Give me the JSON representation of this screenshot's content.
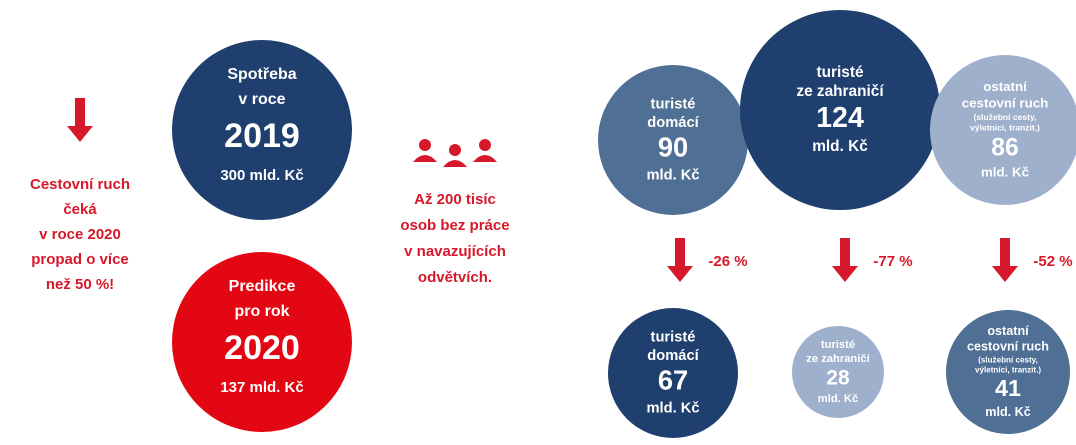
{
  "headline": {
    "lines": [
      "Cestovní  ruch",
      "čeká",
      "v roce 2020",
      "propad o více",
      "než 50 %!"
    ]
  },
  "consumption_2019": {
    "lines": [
      "Spotřeba",
      "v roce"
    ],
    "year": "2019",
    "amount": "300 mld. Kč"
  },
  "prediction_2020": {
    "lines": [
      "Predikce",
      "pro rok"
    ],
    "year": "2020",
    "amount": "137 mld. Kč"
  },
  "unemployment": {
    "lines": [
      "Až 200 tisíc",
      "osob bez práce",
      "v navazujících",
      "odvětvích."
    ]
  },
  "segments_2019": [
    {
      "lines": [
        "turisté",
        "domácí"
      ],
      "value": "90",
      "unit": "mld. Kč"
    },
    {
      "lines": [
        "turisté",
        "ze zahraničí"
      ],
      "value": "124",
      "unit": "mld. Kč"
    },
    {
      "lines": [
        "ostatní",
        "cestovní ruch"
      ],
      "note": [
        "(služební cesty,",
        "výletníci, tranzit.)"
      ],
      "value": "86",
      "unit": "mld. Kč"
    }
  ],
  "changes": [
    "-26 %",
    "-77 %",
    "-52 %"
  ],
  "segments_2020": [
    {
      "lines": [
        "turisté",
        "domácí"
      ],
      "value": "67",
      "unit": "mld. Kč"
    },
    {
      "lines": [
        "turisté",
        "ze zahraničí"
      ],
      "value": "28",
      "unit": "mld. Kč"
    },
    {
      "lines": [
        "ostatní",
        "cestovní ruch"
      ],
      "note": [
        "(služební cesty,",
        "výletníci, tranzit.)"
      ],
      "value": "41",
      "unit": "mld. Kč"
    }
  ]
}
